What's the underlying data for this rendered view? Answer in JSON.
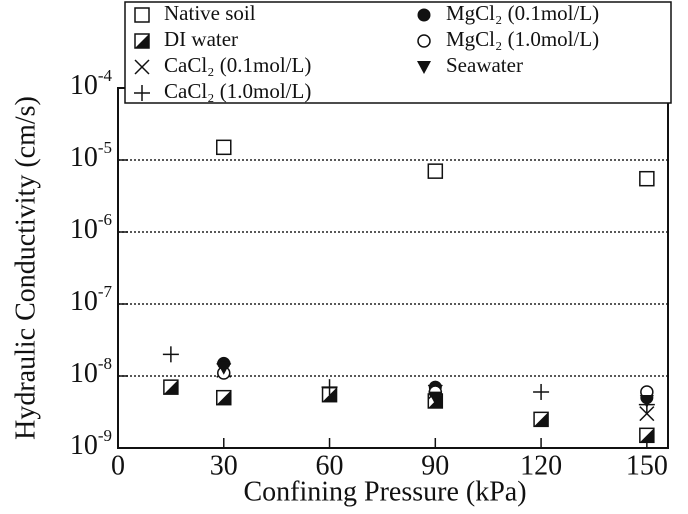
{
  "chart_data": {
    "type": "scatter",
    "x_label": "Confining Pressure (kPa)",
    "y_label": "Hydraulic Conductivity (cm/s)",
    "xlim": [
      0,
      156
    ],
    "xticks": [
      0,
      30,
      60,
      90,
      120,
      150
    ],
    "ylim": [
      1e-09,
      0.0001
    ],
    "yticks": [
      {
        "value": 1e-09,
        "label": "10-9"
      },
      {
        "value": 1e-08,
        "label": "10-8"
      },
      {
        "value": 1e-07,
        "label": "10-7"
      },
      {
        "value": 1e-06,
        "label": "10-6"
      },
      {
        "value": 1e-05,
        "label": "10-5"
      },
      {
        "value": 0.0001,
        "label": "10-4"
      }
    ],
    "log_y": true,
    "grid": true,
    "legend": "top",
    "series": [
      {
        "name": "Native soil",
        "marker": "square-open",
        "color": "#111",
        "x": [
          30,
          90,
          150
        ],
        "values": [
          1.5e-05,
          7e-06,
          5.5e-06
        ]
      },
      {
        "name": "DI water",
        "marker": "square-half",
        "color": "#111",
        "x": [
          15,
          30,
          60,
          90,
          120,
          150
        ],
        "values": [
          7e-09,
          5e-09,
          5.5e-09,
          4.5e-09,
          2.5e-09,
          1.5e-09
        ]
      },
      {
        "name": "CaCl₂ (0.1mol/L)",
        "marker": "cross",
        "color": "#111",
        "x": [
          30,
          90,
          150
        ],
        "values": [
          1.2e-08,
          6e-09,
          3e-09
        ]
      },
      {
        "name": "CaCl₂ (1.0mol/L)",
        "marker": "plus",
        "color": "#111",
        "x": [
          15,
          60,
          120,
          150
        ],
        "values": [
          2e-08,
          7e-09,
          6e-09,
          4e-09
        ]
      },
      {
        "name": "MgCl₂ (0.1mol/L)",
        "marker": "circle-filled",
        "color": "#111",
        "x": [
          30,
          90,
          150
        ],
        "values": [
          1.5e-08,
          7e-09,
          5e-09
        ]
      },
      {
        "name": "MgCl₂ (1.0mol/L)",
        "marker": "circle-open",
        "color": "#111",
        "x": [
          30,
          90,
          150
        ],
        "values": [
          1.1e-08,
          6e-09,
          6e-09
        ]
      },
      {
        "name": "Seawater",
        "marker": "triangle-down",
        "color": "#111",
        "x": [
          30,
          90,
          150
        ],
        "values": [
          1.3e-08,
          5e-09,
          4.5e-09
        ]
      }
    ]
  }
}
